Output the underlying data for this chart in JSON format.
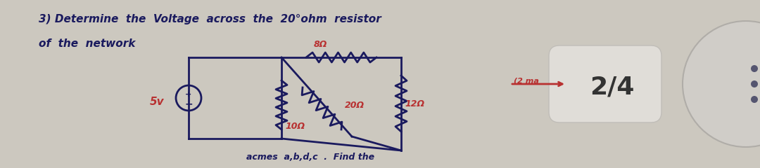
{
  "bg_color": "#ccc8bf",
  "text_color_dark": "#1a1a5e",
  "text_color_red": "#b83030",
  "title_line1": "3) Determine  the  Voltage  across  the  20°ohm  resistor",
  "title_line2": "of  the  network",
  "page_label": "2/4",
  "bottom_text": "acmes  a,b,d,c  .  Find the",
  "circuit": {
    "source_label": "5v",
    "r1_label": "8Ω",
    "r2_label": "10Ω",
    "r3_label": "20Ω",
    "r4_label": "12Ω"
  },
  "figsize": [
    10.8,
    2.4
  ],
  "dpi": 100
}
